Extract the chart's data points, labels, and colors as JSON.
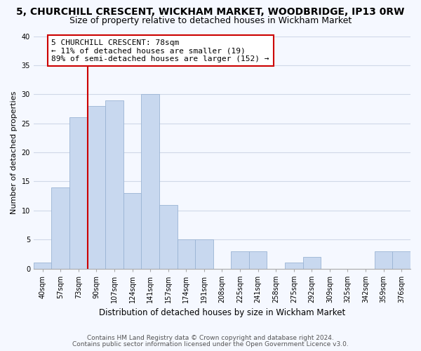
{
  "title1": "5, CHURCHILL CRESCENT, WICKHAM MARKET, WOODBRIDGE, IP13 0RW",
  "title2": "Size of property relative to detached houses in Wickham Market",
  "xlabel": "Distribution of detached houses by size in Wickham Market",
  "ylabel": "Number of detached properties",
  "categories": [
    "40sqm",
    "57sqm",
    "73sqm",
    "90sqm",
    "107sqm",
    "124sqm",
    "141sqm",
    "157sqm",
    "174sqm",
    "191sqm",
    "208sqm",
    "225sqm",
    "241sqm",
    "258sqm",
    "275sqm",
    "292sqm",
    "309sqm",
    "325sqm",
    "342sqm",
    "359sqm",
    "376sqm"
  ],
  "values": [
    1,
    14,
    26,
    28,
    29,
    13,
    30,
    11,
    5,
    5,
    0,
    3,
    3,
    0,
    1,
    2,
    0,
    0,
    0,
    3,
    3
  ],
  "bar_color": "#c8d8ef",
  "bar_edge_color": "#9ab4d4",
  "property_line_idx": 2,
  "property_line_color": "#cc0000",
  "annotation_line1": "5 CHURCHILL CRESCENT: 78sqm",
  "annotation_line2": "← 11% of detached houses are smaller (19)",
  "annotation_line3": "89% of semi-detached houses are larger (152) →",
  "annotation_box_facecolor": "#ffffff",
  "annotation_box_edgecolor": "#cc0000",
  "ylim": [
    0,
    40
  ],
  "yticks": [
    0,
    5,
    10,
    15,
    20,
    25,
    30,
    35,
    40
  ],
  "footer1": "Contains HM Land Registry data © Crown copyright and database right 2024.",
  "footer2": "Contains public sector information licensed under the Open Government Licence v3.0.",
  "bg_color": "#f5f8ff",
  "grid_color": "#d0d8e8",
  "title1_fontsize": 10,
  "title2_fontsize": 9,
  "ylabel_fontsize": 8,
  "xlabel_fontsize": 8.5,
  "tick_fontsize": 7,
  "footer_fontsize": 6.5,
  "ann_fontsize": 8
}
